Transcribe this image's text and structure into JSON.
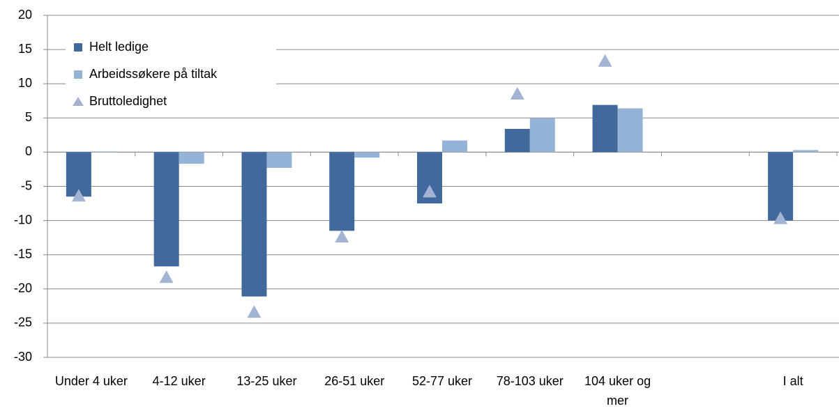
{
  "chart_data": {
    "type": "bar",
    "categories": [
      "Under 4 uker",
      "4-12 uker",
      "13-25 uker",
      "26-51 uker",
      "52-77 uker",
      "78-103 uker",
      "104 uker og mer",
      null,
      "I alt"
    ],
    "series": [
      {
        "name": "Helt ledige",
        "color": "#41699b",
        "marker": "bar",
        "values": [
          -6.5,
          -16.7,
          -21.1,
          -11.5,
          -7.5,
          3.4,
          6.9,
          null,
          -10.0
        ]
      },
      {
        "name": "Arbeidssøkere på tiltak",
        "color": "#95b3d7",
        "marker": "bar",
        "values": [
          0.1,
          -1.7,
          -2.3,
          -0.8,
          1.7,
          5.0,
          6.4,
          null,
          0.3
        ]
      },
      {
        "name": "Bruttoledighet",
        "color": "#a3b3d3",
        "marker": "triangle",
        "values": [
          -6.4,
          -18.3,
          -23.4,
          -12.4,
          -5.8,
          8.5,
          13.3,
          null,
          -9.7
        ]
      }
    ],
    "ylim": [
      -30,
      20
    ],
    "yticks": [
      -30,
      -25,
      -20,
      -15,
      -10,
      -5,
      0,
      5,
      10,
      15,
      20
    ],
    "grid": true,
    "legend": "top-left"
  }
}
